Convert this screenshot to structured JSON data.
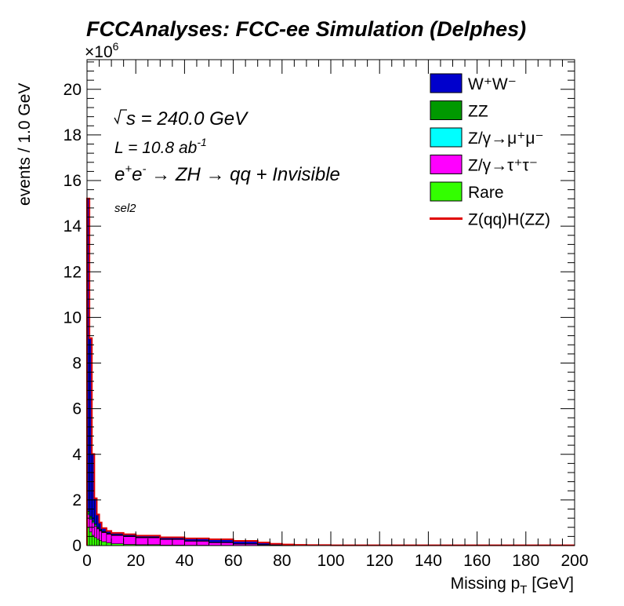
{
  "chart_data": {
    "type": "area",
    "title": "FCCAnalyses: FCC-ee Simulation (Delphes)",
    "xlabel": "Missing p_T [GeV]",
    "ylabel": "events / 1.0 GeV",
    "y_exponent": "×10^6",
    "xlim": [
      0,
      200
    ],
    "ylim": [
      0,
      21.3
    ],
    "x_ticks": [
      0,
      20,
      40,
      60,
      80,
      100,
      120,
      140,
      160,
      180,
      200
    ],
    "y_ticks": [
      0,
      2,
      4,
      6,
      8,
      10,
      12,
      14,
      16,
      18,
      20
    ],
    "stacked": true,
    "bin_width": 1.0,
    "annotations": {
      "sqrt_s": "= 240.0 GeV",
      "lumi": "L = 10.8 ab",
      "lumi_exp": "-1",
      "process": "→ ZH → qq + Invisible",
      "selection": "sel2"
    },
    "legend": [
      {
        "label": "W⁺W⁻",
        "color": "#0000cc",
        "kind": "fill"
      },
      {
        "label": "ZZ",
        "color": "#009900",
        "kind": "fill"
      },
      {
        "label": "Z/γ→μ⁺μ⁻",
        "color": "#00ffff",
        "kind": "fill"
      },
      {
        "label": "Z/γ→τ⁺τ⁻",
        "color": "#ff00ff",
        "kind": "fill"
      },
      {
        "label": "Rare",
        "color": "#33ff00",
        "kind": "fill"
      },
      {
        "label": "Z(qq)H(ZZ)",
        "color": "#e00000",
        "kind": "line"
      }
    ],
    "x_bin_starts": [
      0,
      1,
      2,
      3,
      4,
      5,
      6,
      8,
      10,
      15,
      20,
      30,
      40,
      50,
      60,
      70,
      75,
      80,
      85,
      90,
      100,
      150,
      199
    ],
    "series": [
      {
        "name": "Rare",
        "color": "#33ff00",
        "values": [
          0.8,
          0.6,
          0.45,
          0.35,
          0.28,
          0.22,
          0.17,
          0.12,
          0.08,
          0.05,
          0.04,
          0.02,
          0.015,
          0.01,
          0.005,
          0.003,
          0.002,
          0.001,
          0.0,
          0.0,
          0.0,
          0.0,
          0.0
        ]
      },
      {
        "name": "Z/γ→τ⁺τ⁻",
        "color": "#ff00ff",
        "values": [
          0.55,
          0.55,
          0.55,
          0.5,
          0.45,
          0.42,
          0.4,
          0.38,
          0.36,
          0.34,
          0.3,
          0.25,
          0.18,
          0.12,
          0.07,
          0.04,
          0.02,
          0.01,
          0.005,
          0.0,
          0.0,
          0.0,
          0.0
        ]
      },
      {
        "name": "Z/γ→μ⁺μ⁻",
        "color": "#00ffff",
        "values": [
          0.05,
          0.05,
          0.04,
          0.04,
          0.03,
          0.02,
          0.02,
          0.02,
          0.015,
          0.01,
          0.01,
          0.005,
          0.005,
          0.003,
          0.002,
          0.001,
          0.0,
          0.0,
          0.0,
          0.0,
          0.0,
          0.0,
          0.0
        ]
      },
      {
        "name": "ZZ",
        "color": "#009900",
        "values": [
          0.1,
          0.08,
          0.06,
          0.05,
          0.04,
          0.035,
          0.03,
          0.025,
          0.02,
          0.02,
          0.015,
          0.01,
          0.01,
          0.008,
          0.005,
          0.003,
          0.002,
          0.001,
          0.0,
          0.0,
          0.0,
          0.0,
          0.0
        ]
      },
      {
        "name": "W⁺W⁻",
        "color": "#0000cc",
        "values": [
          13.7,
          7.8,
          2.9,
          1.12,
          0.55,
          0.3,
          0.13,
          0.08,
          0.065,
          0.06,
          0.055,
          0.06,
          0.09,
          0.12,
          0.11,
          0.07,
          0.04,
          0.02,
          0.01,
          0.005,
          0.0,
          0.0,
          0.0
        ]
      }
    ],
    "signal_line": {
      "name": "Z(qq)H(ZZ)",
      "color": "#e00000",
      "values_offset_above_stack": 0.015
    }
  }
}
